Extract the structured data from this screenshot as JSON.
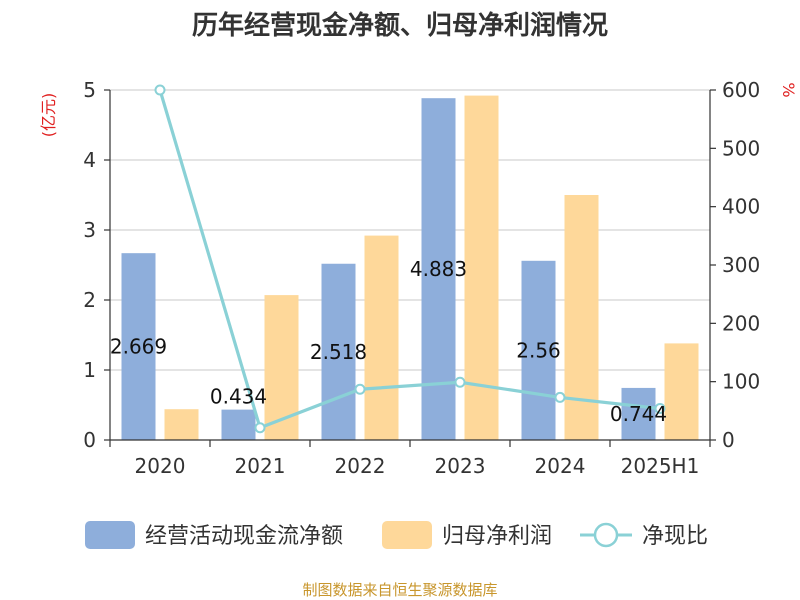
{
  "chart_data": {
    "type": "bar",
    "title": "历年经营现金净额、归母净利润情况",
    "categories": [
      "2020",
      "2021",
      "2022",
      "2023",
      "2024",
      "2025H1"
    ],
    "left_unit": "(亿元)",
    "right_unit": "%",
    "ylim_left": [
      0,
      5
    ],
    "ylim_right": [
      0,
      600
    ],
    "yticks_left": [
      "0",
      "1",
      "2",
      "3",
      "4",
      "5"
    ],
    "yticks_right": [
      "0",
      "100",
      "200",
      "300",
      "400",
      "500",
      "600"
    ],
    "grid": true,
    "legend_position": "bottom",
    "series": [
      {
        "name": "经营活动现金流净额",
        "type": "bar",
        "axis": "left",
        "color": "#8eaedb",
        "values": [
          2.669,
          0.434,
          2.518,
          4.883,
          2.56,
          0.744
        ],
        "labels": [
          "2.669",
          "0.434",
          "2.518",
          "4.883",
          "2.56",
          "0.744"
        ]
      },
      {
        "name": "归母净利润",
        "type": "bar",
        "axis": "left",
        "color": "#fed89a",
        "values": [
          0.44,
          2.07,
          2.92,
          4.92,
          3.5,
          1.38
        ]
      },
      {
        "name": "净现比",
        "type": "line",
        "axis": "right",
        "color": "#8ad1d6",
        "values": [
          600,
          21,
          87,
          99,
          73,
          54
        ]
      }
    ],
    "source": "制图数据来自恒生聚源数据库"
  }
}
